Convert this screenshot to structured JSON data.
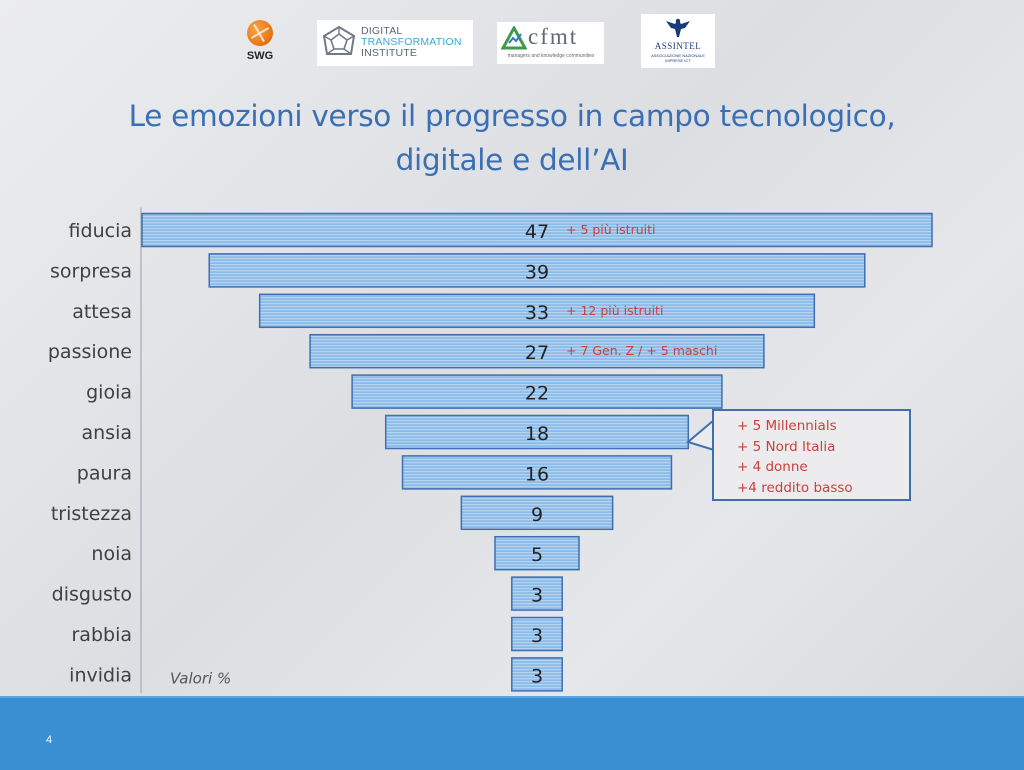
{
  "logos": {
    "swg": {
      "text": "SWG"
    },
    "dti": {
      "line1": "DIGITAL",
      "line2": "TRANSFORMATION",
      "line3": "INSTITUTE"
    },
    "cfmt": {
      "text": "cfmt",
      "subtitle": "managers and knowledge communities"
    },
    "assintel": {
      "name": "ASSINTEL",
      "subtitle": "ASSOCIAZIONE NAZIONALE IMPRESE ICT"
    }
  },
  "title": {
    "line1": "Le emozioni verso il progresso in campo tecnologico,",
    "line2": "digitale e dell’AI"
  },
  "chart_data": {
    "type": "bar",
    "orientation": "horizontal-centered",
    "categories": [
      "fiducia",
      "sorpresa",
      "attesa",
      "passione",
      "gioia",
      "ansia",
      "paura",
      "tristezza",
      "noia",
      "disgusto",
      "rabbia",
      "invidia"
    ],
    "values": [
      47,
      39,
      33,
      27,
      22,
      18,
      16,
      9,
      5,
      3,
      3,
      3
    ],
    "annotations": [
      {
        "category": "fiducia",
        "text": "+ 5 più istruiti"
      },
      {
        "category": "attesa",
        "text": "+ 12 più istruiti"
      },
      {
        "category": "passione",
        "text": "+ 7 Gen. Z / + 5 maschi"
      }
    ],
    "note_label": "Valori %",
    "colors": {
      "bar": "#8fbce8",
      "bar_stripe": "#a9cdf0",
      "bar_border": "#3f6fb1",
      "label": "#222222",
      "annotation": "#c8413c",
      "category": "#404040"
    }
  },
  "callout": {
    "category": "ansia",
    "lines": [
      "+ 5 Millennials",
      "+ 5 Nord Italia",
      "+ 4 donne",
      "+4 reddito basso"
    ]
  },
  "footer": {
    "page_number": "4"
  },
  "colors": {
    "title": "#3a6fb5",
    "footer": "#3a8fd3"
  }
}
